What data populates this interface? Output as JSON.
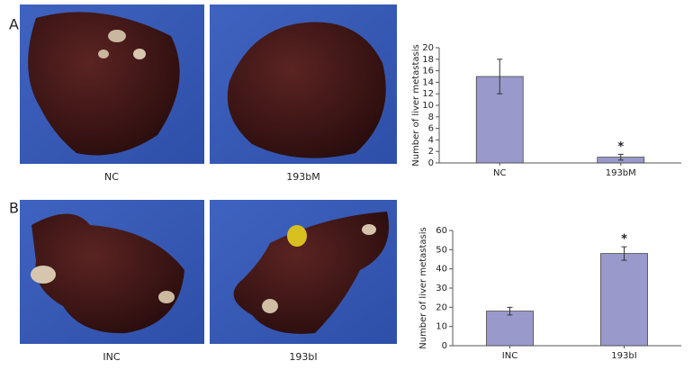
{
  "figure": {
    "panel_labels": [
      "A",
      "B"
    ],
    "image_captions": [
      [
        "NC",
        "193bM"
      ],
      [
        "INC",
        "193bI"
      ]
    ]
  },
  "chart_data": [
    {
      "type": "bar",
      "y_label": "Number of liver metastasis",
      "categories": [
        "NC",
        "193bM"
      ],
      "values": [
        15,
        1
      ],
      "errors": [
        3,
        0.5
      ],
      "color": "#9999cc",
      "ylim": [
        0,
        20
      ],
      "yticks": [
        0,
        2,
        4,
        6,
        8,
        10,
        12,
        14,
        16,
        18,
        20
      ],
      "annotations": [
        {
          "category": "193bM",
          "text": "*"
        }
      ]
    },
    {
      "type": "bar",
      "y_label": "Number of liver metastasis",
      "categories": [
        "INC",
        "193bI"
      ],
      "values": [
        18,
        48
      ],
      "errors": [
        2,
        3.5
      ],
      "color": "#9999cc",
      "ylim": [
        0,
        60
      ],
      "yticks": [
        0,
        10,
        20,
        30,
        40,
        50,
        60
      ],
      "annotations": [
        {
          "category": "193bI",
          "text": "*"
        }
      ]
    }
  ]
}
